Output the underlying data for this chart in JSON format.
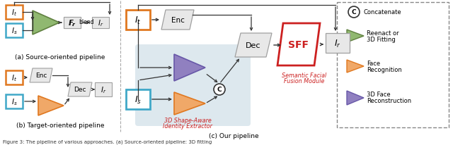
{
  "fig_width": 6.4,
  "fig_height": 2.07,
  "dpi": 100,
  "white": "#ffffff",
  "orange_color": "#f0a868",
  "orange_border": "#e07820",
  "cyan_border": "#40a8c8",
  "green_color": "#90b870",
  "green_border": "#608040",
  "purple_color": "#9080c0",
  "purple_border": "#6858a8",
  "red_color": "#cc2020",
  "gray_fill": "#e8e8e8",
  "gray_border": "#a0a0a0",
  "section_c_bg": "#e8e8e8",
  "sub_bg": "#dde8ee",
  "section_a_label": "(a) Source-oriented pipeline",
  "section_b_label": "(b) Target-oriented pipeline",
  "section_c_label": "(c) Our pipeline",
  "caption": "Figure 3: The pipeline of various approaches. (a) Source-oriented pipeline: 3D fitting"
}
